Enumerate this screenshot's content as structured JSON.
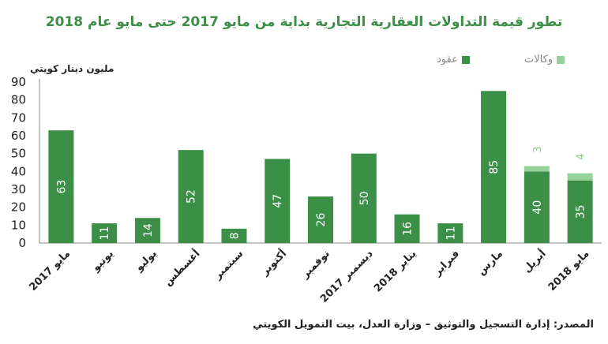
{
  "chart_data": {
    "type": "bar",
    "title": "تطور قيمة التداولات العقارية التجارية بداية من مايو 2017 حتى مايو عام  2018",
    "ylabel": "مليون دينار كويتي",
    "ylim": [
      0,
      90
    ],
    "yticks": [
      0,
      10,
      20,
      30,
      40,
      50,
      60,
      70,
      80,
      90
    ],
    "categories": [
      "مايو 2017",
      "يونيو",
      "يوليو",
      "أغسطس",
      "سبتمبر",
      "أكتوبر",
      "نوفمبر",
      "ديسمبر 2017",
      "يناير 2018",
      "فبراير",
      "مارس",
      "أبريل",
      "مايو 2018"
    ],
    "series": [
      {
        "name": "عقود",
        "color": "#3b8f47",
        "values": [
          63,
          11,
          14,
          52,
          8,
          47,
          26,
          50,
          16,
          11,
          85,
          40,
          35
        ]
      },
      {
        "name": "وكالات",
        "color": "#96d39a",
        "values": [
          0,
          0,
          0,
          0,
          0,
          0,
          0,
          0,
          0,
          0,
          0,
          3,
          4
        ]
      }
    ],
    "stacked": true,
    "grid": false,
    "legend": "top-right"
  },
  "source": "المصدر: إدارة التسجيل والتوثيق – وزارة العدل، بيت التمويل الكويتي"
}
